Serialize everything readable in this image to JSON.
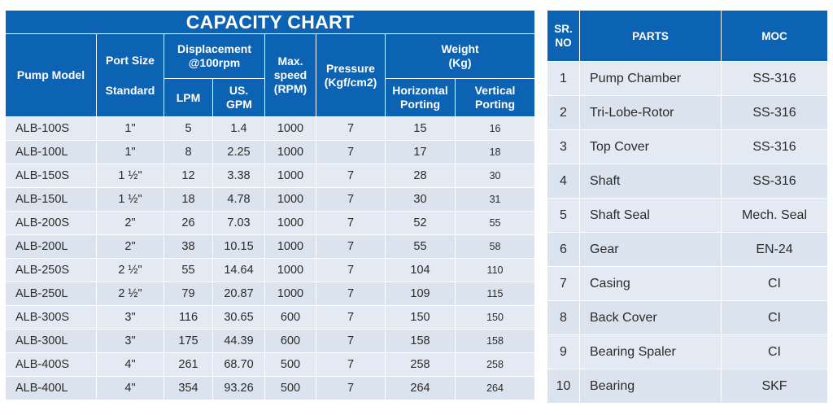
{
  "capacity_chart": {
    "title": "CAPACITY CHART",
    "headers": {
      "pump_model": "Pump Model",
      "port_size": "Port Size",
      "port_size_sub": "Standard",
      "displacement": "Displacement @100rpm",
      "lpm": "LPM",
      "us_gpm": "US. GPM",
      "max_speed": "Max. speed (RPM)",
      "pressure": "Pressure (Kgf/cm2)",
      "weight": "Weight (Kg)",
      "horizontal": "Horizontal Porting",
      "vertical": "Vertical Porting"
    },
    "rows": [
      {
        "model": "ALB-100S",
        "port": "1\"",
        "lpm": "5",
        "gpm": "1.4",
        "speed": "1000",
        "pressure": "7",
        "horizontal": "15",
        "vertical": "16"
      },
      {
        "model": "ALB-100L",
        "port": "1\"",
        "lpm": "8",
        "gpm": "2.25",
        "speed": "1000",
        "pressure": "7",
        "horizontal": "17",
        "vertical": "18"
      },
      {
        "model": "ALB-150S",
        "port": "1 ½\"",
        "lpm": "12",
        "gpm": "3.38",
        "speed": "1000",
        "pressure": "7",
        "horizontal": "28",
        "vertical": "30"
      },
      {
        "model": "ALB-150L",
        "port": "1 ½\"",
        "lpm": "18",
        "gpm": "4.78",
        "speed": "1000",
        "pressure": "7",
        "horizontal": "30",
        "vertical": "31"
      },
      {
        "model": "ALB-200S",
        "port": "2\"",
        "lpm": "26",
        "gpm": "7.03",
        "speed": "1000",
        "pressure": "7",
        "horizontal": "52",
        "vertical": "55"
      },
      {
        "model": "ALB-200L",
        "port": "2\"",
        "lpm": "38",
        "gpm": "10.15",
        "speed": "1000",
        "pressure": "7",
        "horizontal": "55",
        "vertical": "58"
      },
      {
        "model": "ALB-250S",
        "port": "2 ½\"",
        "lpm": "55",
        "gpm": "14.64",
        "speed": "1000",
        "pressure": "7",
        "horizontal": "104",
        "vertical": "110"
      },
      {
        "model": "ALB-250L",
        "port": "2 ½\"",
        "lpm": "79",
        "gpm": "20.87",
        "speed": "1000",
        "pressure": "7",
        "horizontal": "109",
        "vertical": "115"
      },
      {
        "model": "ALB-300S",
        "port": "3\"",
        "lpm": "116",
        "gpm": "30.65",
        "speed": "600",
        "pressure": "7",
        "horizontal": "150",
        "vertical": "150"
      },
      {
        "model": "ALB-300L",
        "port": "3\"",
        "lpm": "175",
        "gpm": "44.39",
        "speed": "600",
        "pressure": "7",
        "horizontal": "158",
        "vertical": "158"
      },
      {
        "model": "ALB-400S",
        "port": "4\"",
        "lpm": "261",
        "gpm": "68.70",
        "speed": "500",
        "pressure": "7",
        "horizontal": "258",
        "vertical": "258"
      },
      {
        "model": "ALB-400L",
        "port": "4\"",
        "lpm": "354",
        "gpm": "93.26",
        "speed": "500",
        "pressure": "7",
        "horizontal": "264",
        "vertical": "264"
      }
    ]
  },
  "parts_table": {
    "headers": {
      "sr_no": "SR. NO",
      "parts": "PARTS",
      "moc": "MOC"
    },
    "rows": [
      {
        "sr": "1",
        "part": "Pump Chamber",
        "moc": "SS-316"
      },
      {
        "sr": "2",
        "part": "Tri-Lobe-Rotor",
        "moc": "SS-316"
      },
      {
        "sr": "3",
        "part": "Top Cover",
        "moc": "SS-316"
      },
      {
        "sr": "4",
        "part": "Shaft",
        "moc": "SS-316"
      },
      {
        "sr": "5",
        "part": "Shaft Seal",
        "moc": "Mech. Seal"
      },
      {
        "sr": "6",
        "part": "Gear",
        "moc": "EN-24"
      },
      {
        "sr": "7",
        "part": "Casing",
        "moc": "CI"
      },
      {
        "sr": "8",
        "part": "Back Cover",
        "moc": "CI"
      },
      {
        "sr": "9",
        "part": "Bearing Spaler",
        "moc": "CI"
      },
      {
        "sr": "10",
        "part": "Bearing",
        "moc": "SKF"
      }
    ]
  },
  "colors": {
    "header_blue": "#0d63b3",
    "row_light": "#e4eaf3",
    "row_dark": "#dbe3ee"
  }
}
